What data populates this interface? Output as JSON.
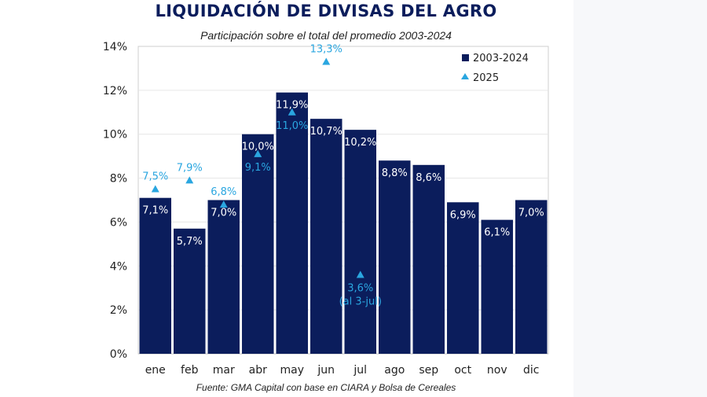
{
  "title": "LIQUIDACIÓN DE DIVISAS DEL AGRO",
  "subtitle": "Participación sobre el total del promedio 2003-2024",
  "source": "Fuente: GMA Capital con base en CIARA y Bolsa de Cereales",
  "colors": {
    "bar": "#0b1d5c",
    "marker": "#2aa6e0",
    "title": "#0b1d5c"
  },
  "chart_data": {
    "type": "bar",
    "title": "LIQUIDACIÓN DE DIVISAS DEL AGRO",
    "subtitle": "Participación sobre el total del promedio 2003-2024",
    "xlabel": "",
    "ylabel": "",
    "ylim": [
      0,
      14
    ],
    "yticks": [
      0,
      2,
      4,
      6,
      8,
      10,
      12,
      14
    ],
    "ytick_labels": [
      "0%",
      "2%",
      "4%",
      "6%",
      "8%",
      "10%",
      "12%",
      "14%"
    ],
    "categories": [
      "ene",
      "feb",
      "mar",
      "abr",
      "may",
      "jun",
      "jul",
      "ago",
      "sep",
      "oct",
      "nov",
      "dic"
    ],
    "legend_position": "top-right",
    "series": [
      {
        "name": "2003-2024",
        "kind": "bar",
        "values": [
          7.1,
          5.7,
          7.0,
          10.0,
          11.9,
          10.7,
          10.2,
          8.8,
          8.6,
          6.9,
          6.1,
          7.0
        ],
        "labels": [
          "7,1%",
          "5,7%",
          "7,0%",
          "10,0%",
          "11,9%",
          "10,7%",
          "10,2%",
          "8,8%",
          "8,6%",
          "6,9%",
          "6,1%",
          "7,0%"
        ]
      },
      {
        "name": "2025",
        "kind": "marker",
        "values": [
          7.5,
          7.9,
          6.8,
          9.1,
          11.0,
          13.3,
          3.6,
          null,
          null,
          null,
          null,
          null
        ],
        "labels": [
          "7,5%",
          "7,9%",
          "6,8%",
          "9,1%",
          "11,0%",
          "13,3%",
          "3,6%",
          null,
          null,
          null,
          null,
          null
        ]
      }
    ],
    "annotations": [
      {
        "category": "jul",
        "text": "(al 3-jul)"
      }
    ]
  }
}
